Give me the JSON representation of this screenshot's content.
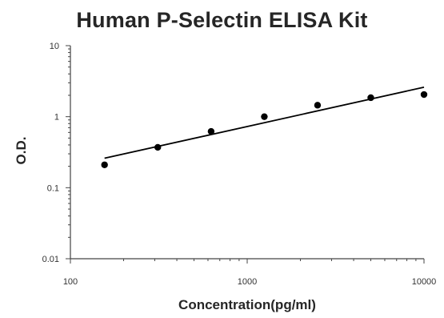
{
  "chart_data": {
    "type": "scatter",
    "title": "Human P-Selectin ELISA Kit",
    "xlabel": "Concentration(pg/ml)",
    "ylabel": "O.D.",
    "xscale": "log",
    "yscale": "log",
    "xlim": [
      100,
      10000
    ],
    "ylim": [
      0.01,
      10
    ],
    "x_tick_labels": [
      "100",
      "1000",
      "10000"
    ],
    "y_tick_labels": [
      "10",
      "1",
      "0.1",
      "0.01"
    ],
    "grid": false,
    "legend": "none",
    "series": [
      {
        "x": [
          156,
          312,
          625,
          1250,
          2500,
          5000,
          10000
        ],
        "y": [
          0.21,
          0.37,
          0.62,
          1.0,
          1.45,
          1.85,
          2.05
        ]
      }
    ],
    "fit_line": {
      "type": "power",
      "x": [
        156,
        10000
      ],
      "y": [
        0.26,
        2.6
      ]
    },
    "colors": {
      "points": "#000000",
      "line": "#000000",
      "axis": "#444444",
      "text": "#262626"
    }
  }
}
